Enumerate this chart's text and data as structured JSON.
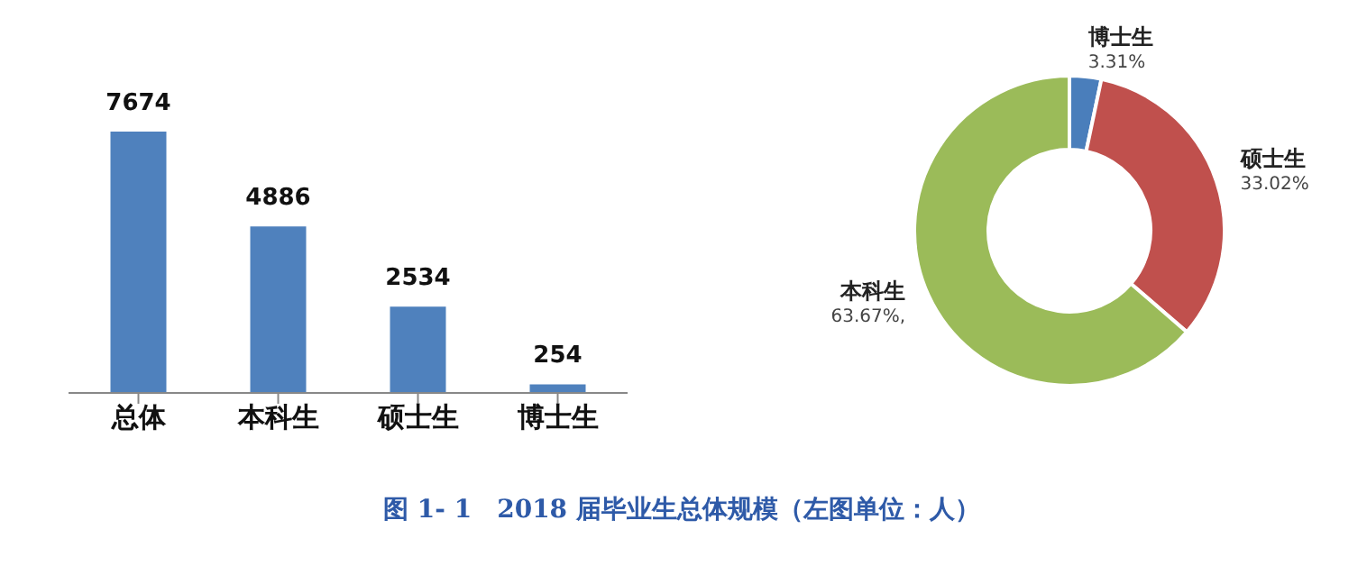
{
  "chart_data": [
    {
      "type": "bar",
      "categories": [
        "总体",
        "本科生",
        "硕士生",
        "博士生"
      ],
      "values": [
        7674,
        4886,
        2534,
        254
      ],
      "color": "#4f81bd",
      "data_labels": true,
      "annotations": [
        "图 1- 1　2018 届毕业生总体规模（左图单位：人）"
      ]
    },
    {
      "type": "donut",
      "categories": [
        "博士生",
        "硕士生",
        "本科生"
      ],
      "values": [
        3.31,
        33.02,
        63.67
      ],
      "colors": [
        "#4a7ebb",
        "#c0504d",
        "#9bbb59"
      ],
      "value_labels": [
        "3.31%",
        "33.02%",
        "63.67%,"
      ]
    }
  ]
}
